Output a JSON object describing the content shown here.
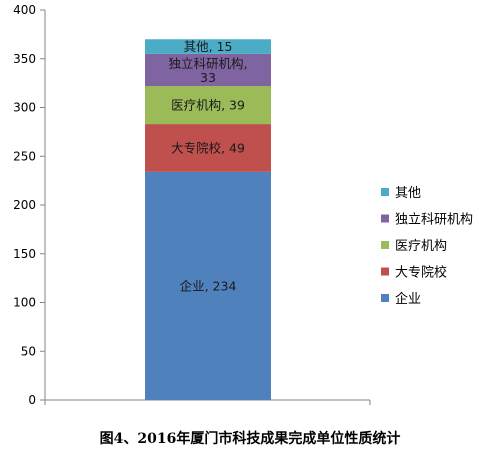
{
  "chart_data": {
    "type": "bar",
    "stacked": true,
    "caption": "图4、2016年厦门市科技成果完成单位性质统计",
    "categories": [
      ""
    ],
    "ylim": [
      0,
      400
    ],
    "yticks": [
      "0",
      "50",
      "100",
      "150",
      "200",
      "250",
      "300",
      "350",
      "400"
    ],
    "series": [
      {
        "name": "企业",
        "values": [
          234
        ],
        "color": "#4F81BD",
        "data_label": "企业, 234"
      },
      {
        "name": "大专院校",
        "values": [
          49
        ],
        "color": "#C0504D",
        "data_label": "大专院校, 49"
      },
      {
        "name": "医疗机构",
        "values": [
          39
        ],
        "color": "#9BBB59",
        "data_label": "医疗机构, 39"
      },
      {
        "name": "独立科研机构",
        "values": [
          33
        ],
        "color": "#8064A2",
        "data_label": "独立科研机构, 33"
      },
      {
        "name": "其他",
        "values": [
          15
        ],
        "color": "#4BACC6",
        "data_label": "其他, 15"
      }
    ],
    "legend": {
      "position": "right",
      "order": [
        "其他",
        "独立科研机构",
        "医疗机构",
        "大专院校",
        "企业"
      ]
    },
    "grid": false
  }
}
